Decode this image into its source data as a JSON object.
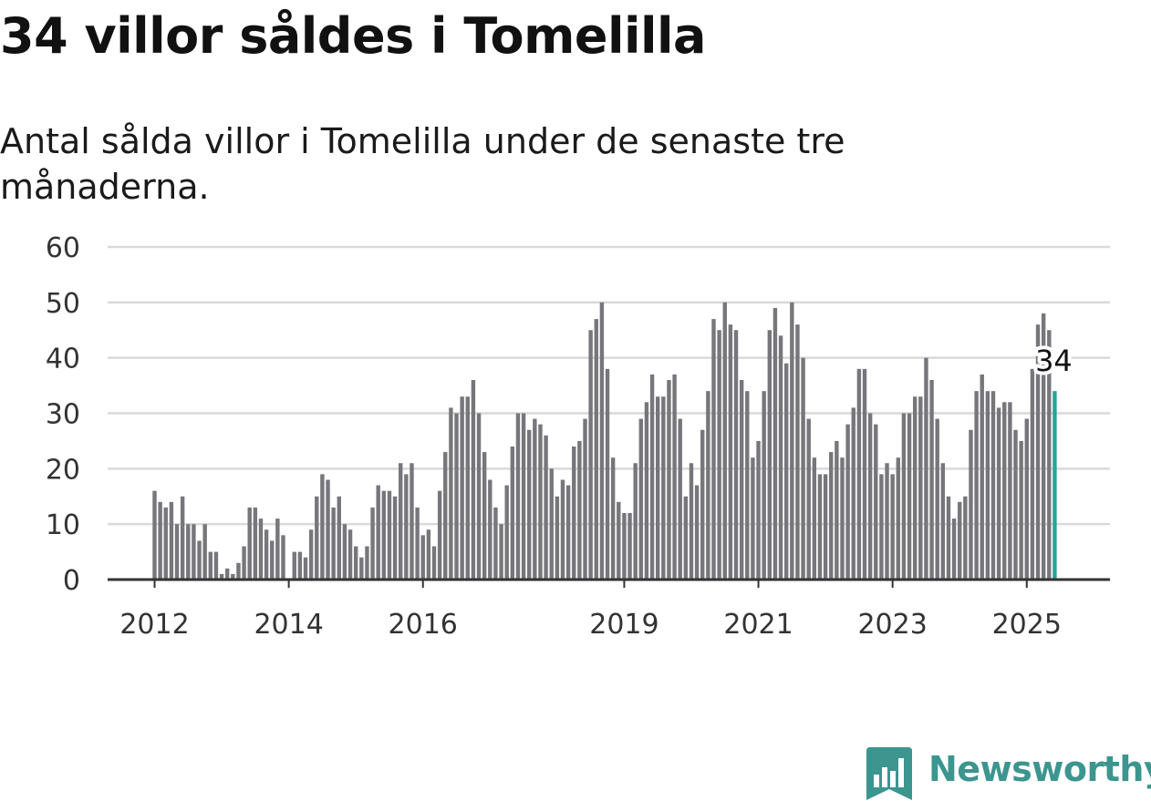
{
  "title": "34 villor såldes i Tomelilla",
  "subtitle": "Antal sålda villor i Tomelilla under de senaste tre månaderna.",
  "brand": {
    "name": "Newsworthy",
    "color": "#3c958f",
    "icon": "bar-chart-bookmark-icon"
  },
  "chart_data": {
    "type": "bar",
    "title": "34 villor såldes i Tomelilla",
    "subtitle": "Antal sålda villor i Tomelilla under de senaste tre månaderna.",
    "xlabel": "",
    "ylabel": "",
    "ylim": [
      0,
      60
    ],
    "yticks": [
      0,
      10,
      20,
      30,
      40,
      50,
      60
    ],
    "xtick_labels": [
      {
        "label": "2012",
        "index": 0
      },
      {
        "label": "2014",
        "index": 24
      },
      {
        "label": "2016",
        "index": 48
      },
      {
        "label": "2019",
        "index": 84
      },
      {
        "label": "2021",
        "index": 108
      },
      {
        "label": "2023",
        "index": 132
      },
      {
        "label": "2025",
        "index": 156
      }
    ],
    "grid": true,
    "bar_color": "#76767b",
    "highlight_color": "#2aa198",
    "highlight_label": "34",
    "values": [
      16,
      14,
      13,
      14,
      10,
      15,
      10,
      10,
      7,
      10,
      5,
      5,
      1,
      2,
      1,
      3,
      6,
      13,
      13,
      11,
      9,
      7,
      11,
      8,
      0,
      5,
      5,
      4,
      9,
      15,
      19,
      18,
      13,
      15,
      10,
      9,
      6,
      4,
      6,
      13,
      17,
      16,
      16,
      15,
      21,
      19,
      21,
      13,
      8,
      9,
      6,
      16,
      23,
      31,
      30,
      33,
      33,
      36,
      30,
      23,
      18,
      13,
      10,
      17,
      24,
      30,
      30,
      27,
      29,
      28,
      26,
      20,
      15,
      18,
      17,
      24,
      25,
      29,
      45,
      47,
      50,
      38,
      22,
      14,
      12,
      12,
      21,
      29,
      32,
      37,
      33,
      33,
      36,
      37,
      29,
      15,
      21,
      17,
      27,
      34,
      47,
      45,
      50,
      46,
      45,
      36,
      34,
      22,
      25,
      34,
      45,
      49,
      44,
      39,
      50,
      46,
      40,
      29,
      22,
      19,
      19,
      23,
      25,
      22,
      28,
      31,
      38,
      38,
      30,
      28,
      19,
      21,
      19,
      22,
      30,
      30,
      33,
      33,
      40,
      36,
      29,
      21,
      15,
      11,
      14,
      15,
      27,
      34,
      37,
      34,
      34,
      31,
      32,
      32,
      27,
      25,
      29,
      38,
      46,
      48,
      45,
      34
    ]
  }
}
